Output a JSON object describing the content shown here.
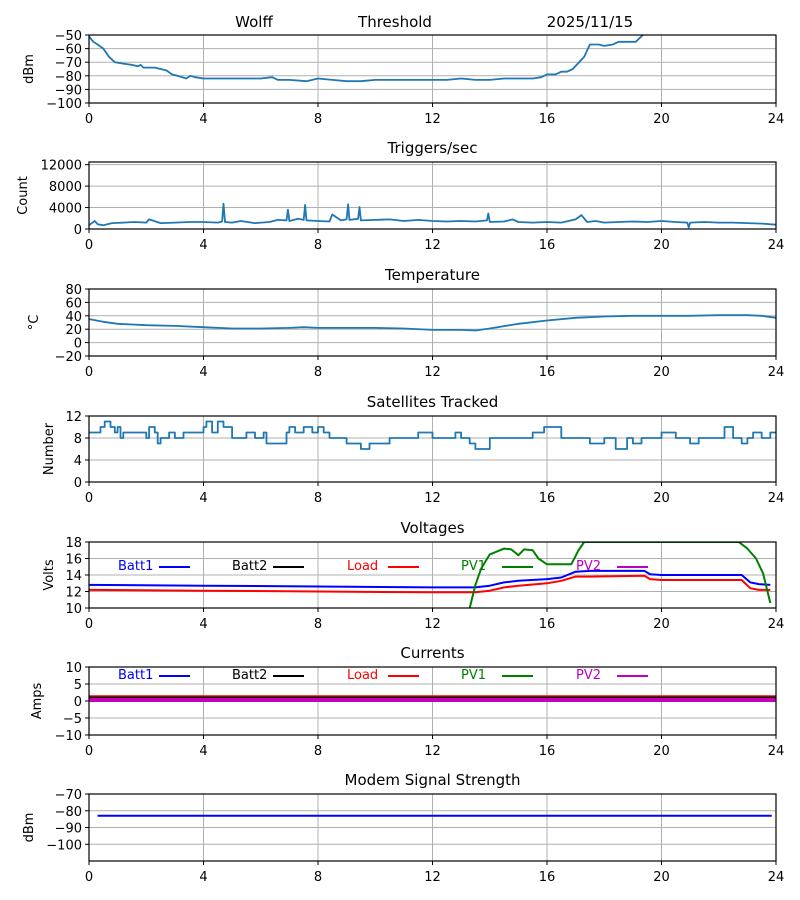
{
  "header": {
    "station": "Wolff",
    "plot": "Threshold",
    "date": "2025/11/15"
  },
  "colors": {
    "default": "#1f77b4",
    "grid": "#b0b0b0",
    "batt1": "#0000ff",
    "batt2": "#000000",
    "load": "#ff0000",
    "pv1": "#008000",
    "pv2": "#bf00bf"
  },
  "chart_data": [
    {
      "type": "line",
      "title": "",
      "ylabel": "dBm",
      "xlabel": "",
      "xlim": [
        0,
        24
      ],
      "ylim": [
        -100,
        -50
      ],
      "xticks": [
        "0",
        "4",
        "8",
        "12",
        "16",
        "20",
        "24"
      ],
      "yticks": [
        "-50",
        "-60",
        "-70",
        "-80",
        "-90",
        "-100"
      ],
      "ytick_values": [
        -50,
        -60,
        -70,
        -80,
        -90,
        -100
      ],
      "grid": true,
      "series": [
        {
          "name": "Threshold",
          "color": "#1f77b4",
          "x": [
            0,
            0.15,
            0.3,
            0.5,
            0.7,
            0.9,
            1.2,
            1.5,
            1.7,
            1.8,
            1.9,
            2.3,
            2.5,
            2.7,
            2.9,
            3.1,
            3.4,
            3.55,
            3.7,
            4.0,
            4.5,
            5.0,
            5.5,
            6.0,
            6.4,
            6.6,
            7.0,
            7.6,
            8.0,
            8.5,
            9.0,
            9.5,
            10.0,
            10.5,
            11.0,
            11.5,
            12.0,
            12.5,
            13.0,
            13.5,
            14.0,
            14.5,
            15.0,
            15.5,
            15.8,
            16.0,
            16.3,
            16.5,
            16.7,
            16.9,
            17.3,
            17.5,
            17.8,
            18.0,
            18.3,
            18.5,
            19.0,
            19.1,
            19.35
          ],
          "values": [
            -51,
            -55,
            -57,
            -60,
            -66,
            -70,
            -71,
            -72,
            -73,
            -72,
            -74,
            -74,
            -75,
            -76,
            -79,
            -80,
            -82,
            -80,
            -81,
            -82,
            -82,
            -82,
            -82,
            -82,
            -81,
            -83,
            -83,
            -84,
            -82,
            -83,
            -84,
            -84,
            -83,
            -83,
            -83,
            -83,
            -83,
            -83,
            -82,
            -83,
            -83,
            -82,
            -82,
            -82,
            -81,
            -79,
            -79,
            -77,
            -77,
            -75,
            -66,
            -57,
            -57,
            -58,
            -57,
            -55,
            -55,
            -55,
            -50
          ]
        }
      ]
    },
    {
      "type": "line",
      "title": "Triggers/sec",
      "ylabel": "Count",
      "xlabel": "",
      "xlim": [
        0,
        24
      ],
      "ylim": [
        0,
        12500
      ],
      "xticks": [
        "0",
        "4",
        "8",
        "12",
        "16",
        "20",
        "24"
      ],
      "yticks": [
        "12000",
        "8000",
        "4000",
        "0"
      ],
      "ytick_values": [
        12000,
        8000,
        4000,
        0
      ],
      "grid": true,
      "series": [
        {
          "name": "Triggers/sec",
          "color": "#1f77b4",
          "x": [
            0,
            0.2,
            0.3,
            0.5,
            0.8,
            1.2,
            1.6,
            2.0,
            2.1,
            2.5,
            3.0,
            3.5,
            4.0,
            4.5,
            4.65,
            4.7,
            4.75,
            5.0,
            5.3,
            5.8,
            6.3,
            6.6,
            6.9,
            6.95,
            7.0,
            7.3,
            7.5,
            7.55,
            7.6,
            8.0,
            8.4,
            8.5,
            8.8,
            9.0,
            9.05,
            9.1,
            9.4,
            9.45,
            9.5,
            10.0,
            10.5,
            11.0,
            11.5,
            12.0,
            12.5,
            13.0,
            13.5,
            13.9,
            13.95,
            14.0,
            14.5,
            14.8,
            15.0,
            15.5,
            16.0,
            16.5,
            17.0,
            17.2,
            17.4,
            17.7,
            18.0,
            18.5,
            19.0,
            19.5,
            20.0,
            20.5,
            20.9,
            20.95,
            21.0,
            21.5,
            22.0,
            22.5,
            23.0,
            23.5,
            24.0
          ],
          "values": [
            700,
            1500,
            900,
            700,
            1100,
            1200,
            1300,
            1200,
            1800,
            1100,
            1200,
            1300,
            1300,
            1200,
            1400,
            4700,
            1300,
            1200,
            1500,
            1100,
            1300,
            1700,
            1600,
            3600,
            1500,
            1900,
            1700,
            4500,
            1600,
            1500,
            1400,
            2700,
            1600,
            1800,
            4600,
            1700,
            1900,
            4100,
            1600,
            1700,
            1800,
            1500,
            1700,
            1500,
            1400,
            1500,
            1400,
            1600,
            2900,
            1300,
            1400,
            1800,
            1300,
            1200,
            1300,
            1200,
            1800,
            2600,
            1300,
            1500,
            1200,
            1300,
            1400,
            1300,
            1500,
            1300,
            1200,
            300,
            1200,
            1300,
            1200,
            1200,
            1100,
            1000,
            800
          ]
        }
      ]
    },
    {
      "type": "line",
      "title": "Temperature",
      "ylabel": "°C",
      "xlabel": "",
      "xlim": [
        0,
        24
      ],
      "ylim": [
        -20,
        80
      ],
      "xticks": [
        "0",
        "4",
        "8",
        "12",
        "16",
        "20",
        "24"
      ],
      "yticks": [
        "80",
        "60",
        "40",
        "20",
        "0",
        "-20"
      ],
      "ytick_values": [
        80,
        60,
        40,
        20,
        0,
        -20
      ],
      "grid": true,
      "series": [
        {
          "name": "Temperature",
          "color": "#1f77b4",
          "x": [
            0,
            0.5,
            1,
            2,
            3,
            4,
            5,
            6,
            7,
            7.5,
            8,
            9,
            10,
            11,
            12,
            13,
            13.5,
            14,
            15,
            16,
            17,
            18,
            19,
            20,
            21,
            22,
            23,
            23.5,
            24
          ],
          "values": [
            35,
            31,
            28,
            26,
            25,
            23,
            21,
            21,
            22,
            23,
            22,
            22,
            22,
            21,
            19,
            19,
            18,
            21,
            28,
            33,
            37,
            39,
            40,
            40,
            40,
            41,
            41,
            40,
            37
          ]
        }
      ]
    },
    {
      "type": "line",
      "title": "Satellites Tracked",
      "ylabel": "Number",
      "xlabel": "",
      "xlim": [
        0,
        24
      ],
      "ylim": [
        0,
        12
      ],
      "xticks": [
        "0",
        "4",
        "8",
        "12",
        "16",
        "20",
        "24"
      ],
      "yticks": [
        "12",
        "8",
        "4",
        "0"
      ],
      "ytick_values": [
        12,
        8,
        4,
        0
      ],
      "grid": true,
      "step": true,
      "series": [
        {
          "name": "Satellites",
          "color": "#1f77b4",
          "x": [
            0,
            0.25,
            0.4,
            0.55,
            0.75,
            0.9,
            1.0,
            1.1,
            1.2,
            2.0,
            2.1,
            2.3,
            2.4,
            2.5,
            2.8,
            3.0,
            3.3,
            4.0,
            4.1,
            4.3,
            4.5,
            4.7,
            5.0,
            5.5,
            5.8,
            6.1,
            6.2,
            6.5,
            6.9,
            7.0,
            7.2,
            7.5,
            7.8,
            8.0,
            8.2,
            8.4,
            9.0,
            9.3,
            9.5,
            9.8,
            10.2,
            10.5,
            11.0,
            11.5,
            12.0,
            12.5,
            12.8,
            13.0,
            13.3,
            13.5,
            14.0,
            14.5,
            15.0,
            15.5,
            15.9,
            16.1,
            16.5,
            17.0,
            17.5,
            17.8,
            18.0,
            18.4,
            18.8,
            19.0,
            19.3,
            19.6,
            20.0,
            20.5,
            21.0,
            21.3,
            21.6,
            21.8,
            22.2,
            22.5,
            22.8,
            23.0,
            23.2,
            23.5,
            23.8,
            24.0
          ],
          "values": [
            9,
            9,
            10,
            11,
            10,
            9,
            10,
            8,
            9,
            8,
            10,
            9,
            7,
            8,
            9,
            8,
            9,
            10,
            11,
            9,
            11,
            10,
            8,
            9,
            8,
            9,
            7,
            7,
            9,
            10,
            9,
            10,
            9,
            10,
            9,
            8,
            7,
            7,
            6,
            7,
            7,
            8,
            8,
            9,
            8,
            8,
            9,
            8,
            7,
            6,
            8,
            8,
            8,
            9,
            10,
            10,
            8,
            8,
            7,
            7,
            8,
            6,
            8,
            7,
            8,
            8,
            9,
            8,
            7,
            8,
            8,
            8,
            10,
            8,
            7,
            8,
            9,
            8,
            9,
            9
          ]
        }
      ]
    },
    {
      "type": "line",
      "title": "Voltages",
      "ylabel": "Volts",
      "xlabel": "",
      "xlim": [
        0,
        24
      ],
      "ylim": [
        10,
        18
      ],
      "xticks": [
        "0",
        "4",
        "8",
        "12",
        "16",
        "20",
        "24"
      ],
      "yticks": [
        "18",
        "16",
        "14",
        "12",
        "10"
      ],
      "ytick_values": [
        18,
        16,
        14,
        12,
        10
      ],
      "grid": true,
      "legend": [
        "Batt1",
        "Batt2",
        "Load",
        "PV1",
        "PV2"
      ],
      "series": [
        {
          "name": "Batt1",
          "color": "#0000ff",
          "x": [
            0,
            4,
            8,
            12,
            13.5,
            14.0,
            14.5,
            15.0,
            16.0,
            16.5,
            17.0,
            17.5,
            19.4,
            19.6,
            20,
            22.8,
            23.1,
            23.4,
            23.8
          ],
          "values": [
            12.8,
            12.7,
            12.6,
            12.5,
            12.5,
            12.7,
            13.1,
            13.3,
            13.5,
            13.7,
            14.4,
            14.5,
            14.5,
            14.1,
            14.0,
            14.0,
            13.1,
            12.9,
            12.8
          ]
        },
        {
          "name": "Load",
          "color": "#ff0000",
          "x": [
            0,
            4,
            8,
            12,
            13.5,
            14.0,
            14.5,
            15.0,
            16.0,
            16.5,
            17.0,
            17.5,
            19.4,
            19.6,
            20,
            22.8,
            23.1,
            23.4,
            23.8
          ],
          "values": [
            12.2,
            12.1,
            12.0,
            11.9,
            11.9,
            12.1,
            12.5,
            12.7,
            13.0,
            13.3,
            13.8,
            13.8,
            13.9,
            13.5,
            13.4,
            13.4,
            12.4,
            12.2,
            12.2
          ]
        },
        {
          "name": "PV1",
          "color": "#008000",
          "x": [
            13.3,
            13.5,
            13.7,
            14.0,
            14.5,
            14.75,
            15.0,
            15.2,
            15.5,
            15.7,
            16.0,
            16.5,
            16.85,
            17.1,
            17.3,
            22.7,
            23.0,
            23.3,
            23.55,
            23.8
          ],
          "values": [
            10.0,
            12.8,
            14.8,
            16.5,
            17.2,
            17.1,
            16.4,
            17.1,
            17.0,
            16.0,
            15.3,
            15.3,
            15.3,
            17.0,
            18.0,
            18.0,
            17.2,
            16.0,
            14.2,
            10.6
          ]
        }
      ]
    },
    {
      "type": "line",
      "title": "Currents",
      "ylabel": "Amps",
      "xlabel": "",
      "xlim": [
        0,
        24
      ],
      "ylim": [
        -10,
        10
      ],
      "xticks": [
        "0",
        "4",
        "8",
        "12",
        "16",
        "20",
        "24"
      ],
      "yticks": [
        "10",
        "5",
        "0",
        "-5",
        "-10"
      ],
      "ytick_values": [
        10,
        5,
        0,
        -5,
        -10
      ],
      "grid": true,
      "legend": [
        "Batt1",
        "Batt2",
        "Load",
        "PV1",
        "PV2"
      ],
      "series": [
        {
          "name": "Load",
          "color": "#ff0000",
          "x": [
            0,
            24
          ],
          "values": [
            1.1,
            1.1
          ]
        },
        {
          "name": "Batt2",
          "color": "#000000",
          "x": [
            0,
            24
          ],
          "values": [
            0.7,
            0.7
          ]
        },
        {
          "name": "PV2",
          "color": "#bf00bf",
          "x": [
            0,
            24
          ],
          "values": [
            0.3,
            0.3
          ]
        }
      ]
    },
    {
      "type": "line",
      "title": "Modem Signal Strength",
      "ylabel": "dBm",
      "xlabel": "",
      "xlim": [
        0,
        24
      ],
      "ylim": [
        -110,
        -70
      ],
      "xticks": [
        "0",
        "4",
        "8",
        "12",
        "16",
        "20",
        "24"
      ],
      "yticks": [
        "-70",
        "-80",
        "-90",
        "-100"
      ],
      "ytick_values": [
        -70,
        -80,
        -90,
        -100
      ],
      "grid": true,
      "series": [
        {
          "name": "Modem",
          "color": "#0000ff",
          "x": [
            0.3,
            23.85
          ],
          "values": [
            -83,
            -83
          ]
        }
      ]
    }
  ]
}
